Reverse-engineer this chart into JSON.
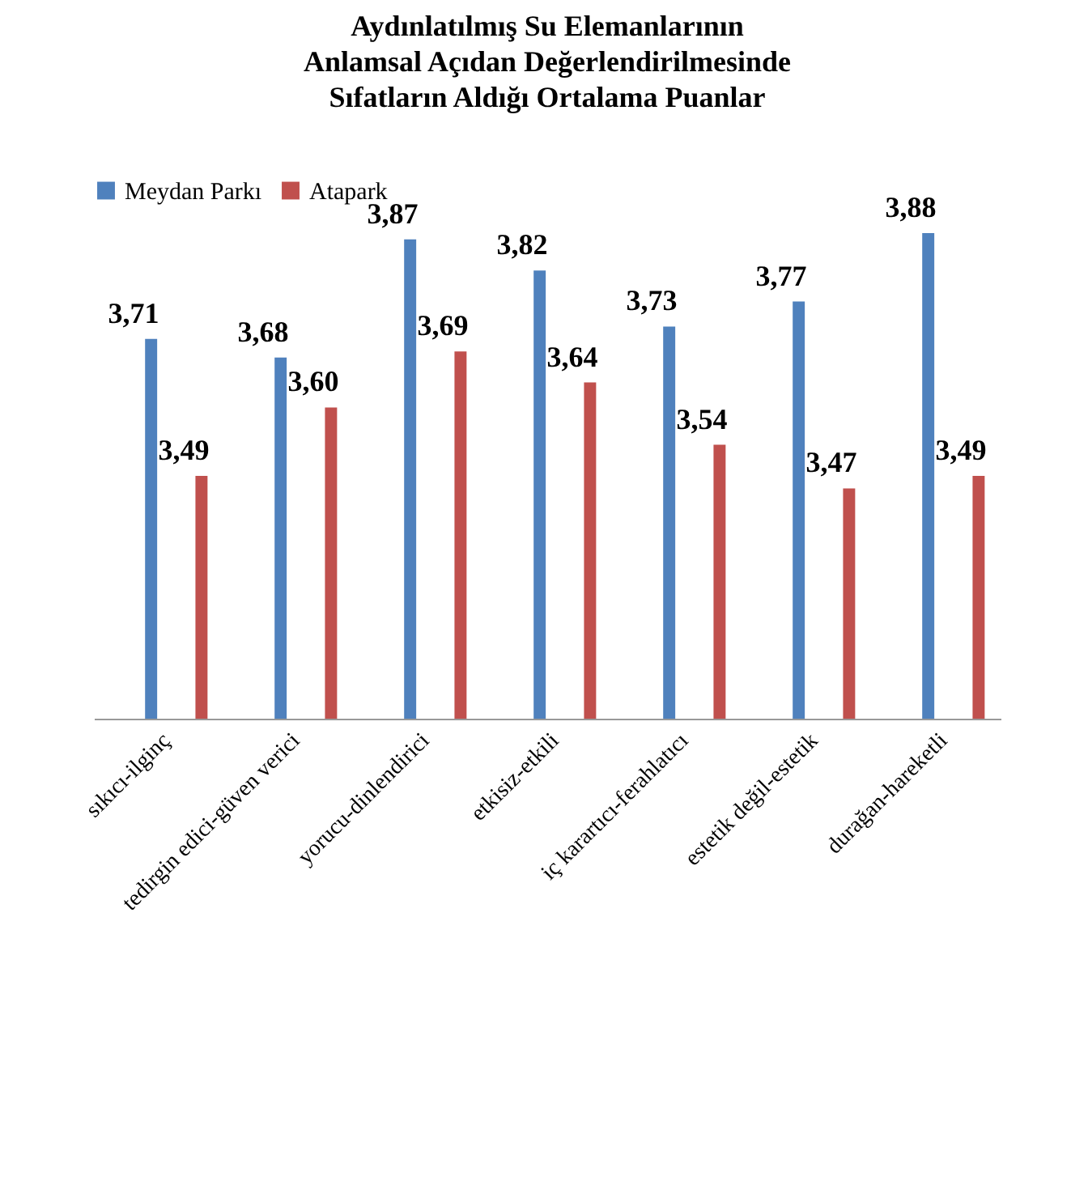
{
  "chart_data": {
    "type": "bar",
    "title": "Aydınlatılmış Su Elemanlarının\nAnlamsal Açıdan Değerlendirilmesinde\nSıfatların Aldığı Ortalama Puanlar",
    "categories": [
      "sıkıcı-ilginç",
      "tedirgin edici-güven verici",
      "yorucu-dinlendirici",
      "etkisiz-etkili",
      "iç karartıcı-ferahlatıcı",
      "estetik değil-estetik",
      "durağan-hareketli"
    ],
    "series": [
      {
        "name": "Meydan Parkı",
        "color": "#4f81bd",
        "values": [
          3.71,
          3.68,
          3.87,
          3.82,
          3.73,
          3.77,
          3.88
        ],
        "value_labels": [
          "3,71",
          "3,68",
          "3,87",
          "3,82",
          "3,73",
          "3,77",
          "3,88"
        ]
      },
      {
        "name": "Atapark",
        "color": "#c0504d",
        "values": [
          3.49,
          3.6,
          3.69,
          3.64,
          3.54,
          3.47,
          3.49
        ],
        "value_labels": [
          "3,49",
          "3,60",
          "3,69",
          "3,64",
          "3,54",
          "3,47",
          "3,49"
        ]
      }
    ],
    "ylim": [
      3.1,
      3.88
    ],
    "legend": "top"
  }
}
